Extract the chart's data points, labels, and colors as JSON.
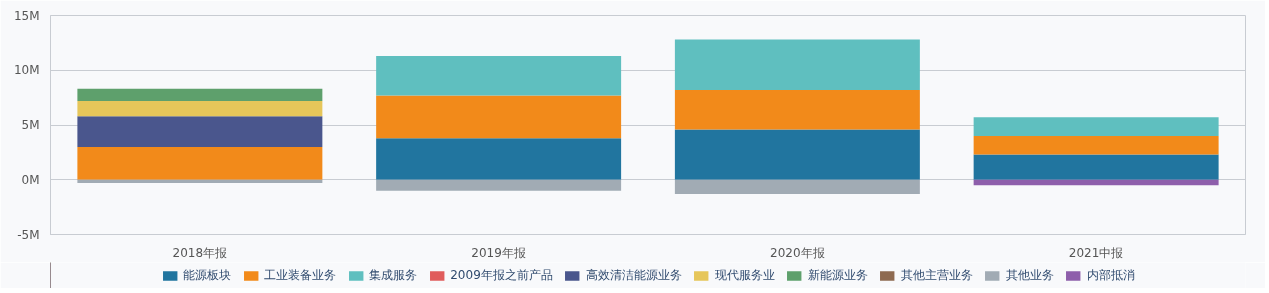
{
  "chart_data": {
    "type": "bar",
    "stacked": true,
    "categories": [
      "2018年报",
      "2019年报",
      "2020年报",
      "2021中报"
    ],
    "ylim": [
      -5,
      15
    ],
    "yticks": [
      {
        "value": -5,
        "label": "-5M"
      },
      {
        "value": 0,
        "label": "0M"
      },
      {
        "value": 5,
        "label": "5M"
      },
      {
        "value": 10,
        "label": "10M"
      },
      {
        "value": 15,
        "label": "15M"
      }
    ],
    "grid": "y",
    "legend": "bottom",
    "series": [
      {
        "name": "能源板块",
        "color": "#21759f",
        "values": [
          null,
          3.8,
          4.6,
          2.3
        ]
      },
      {
        "name": "工业装备业务",
        "color": "#f28a1a",
        "values": [
          3.0,
          3.9,
          3.6,
          1.7
        ]
      },
      {
        "name": "集成服务",
        "color": "#5fbfbf",
        "values": [
          null,
          3.6,
          4.6,
          1.7
        ]
      },
      {
        "name": "2009年报之前产品",
        "color": "#e05c5c",
        "values": [
          null,
          null,
          null,
          null
        ]
      },
      {
        "name": "高效清洁能源业务",
        "color": "#4a568d",
        "values": [
          2.8,
          null,
          null,
          null
        ]
      },
      {
        "name": "现代服务业",
        "color": "#e6c65a",
        "values": [
          1.4,
          null,
          null,
          null
        ]
      },
      {
        "name": "新能源业务",
        "color": "#5ea06c",
        "values": [
          1.1,
          null,
          null,
          null
        ]
      },
      {
        "name": "其他主营业务",
        "color": "#8e6a50",
        "values": [
          null,
          null,
          null,
          null
        ]
      },
      {
        "name": "其他业务",
        "color": "#a1abb4",
        "values": [
          -0.3,
          -1.0,
          -1.3,
          null
        ]
      },
      {
        "name": "内部抵消",
        "color": "#8e5fab",
        "values": [
          null,
          null,
          null,
          -0.5
        ]
      }
    ]
  }
}
